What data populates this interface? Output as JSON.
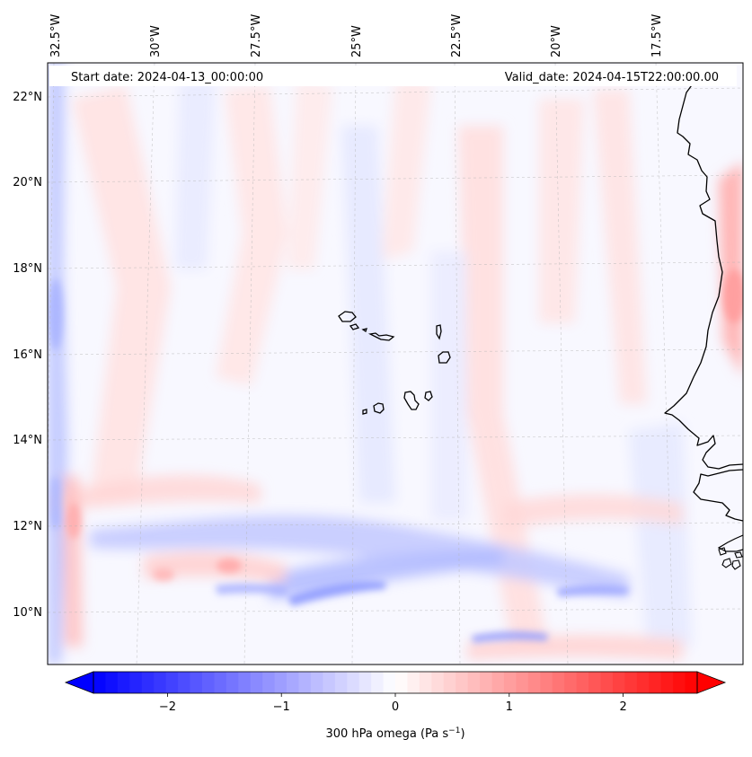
{
  "map": {
    "start_date": "Start date: 2024-04-13_00:00:00",
    "valid_date": "Valid_date: 2024-04-15T22:00:00.00",
    "lon_labels": [
      "32.5°W",
      "30°W",
      "27.5°W",
      "25°W",
      "22.5°W",
      "20°W",
      "17.5°W"
    ],
    "lat_labels": [
      "22°N",
      "20°N",
      "18°N",
      "16°N",
      "14°N",
      "12°N",
      "10°N"
    ]
  },
  "colorbar": {
    "ticks": [
      "−2",
      "−1",
      "0",
      "1",
      "2"
    ],
    "tick_values": [
      -2,
      -1,
      0,
      1,
      2
    ],
    "range": [
      -2.65,
      2.65
    ],
    "label": "300 hPa omega (Pa s",
    "label_sup": "−1",
    "label_end": ")"
  },
  "colors": {
    "negative": "#0000ff",
    "zero": "#ffffff",
    "positive": "#ff0000",
    "coastline": "#000000"
  }
}
